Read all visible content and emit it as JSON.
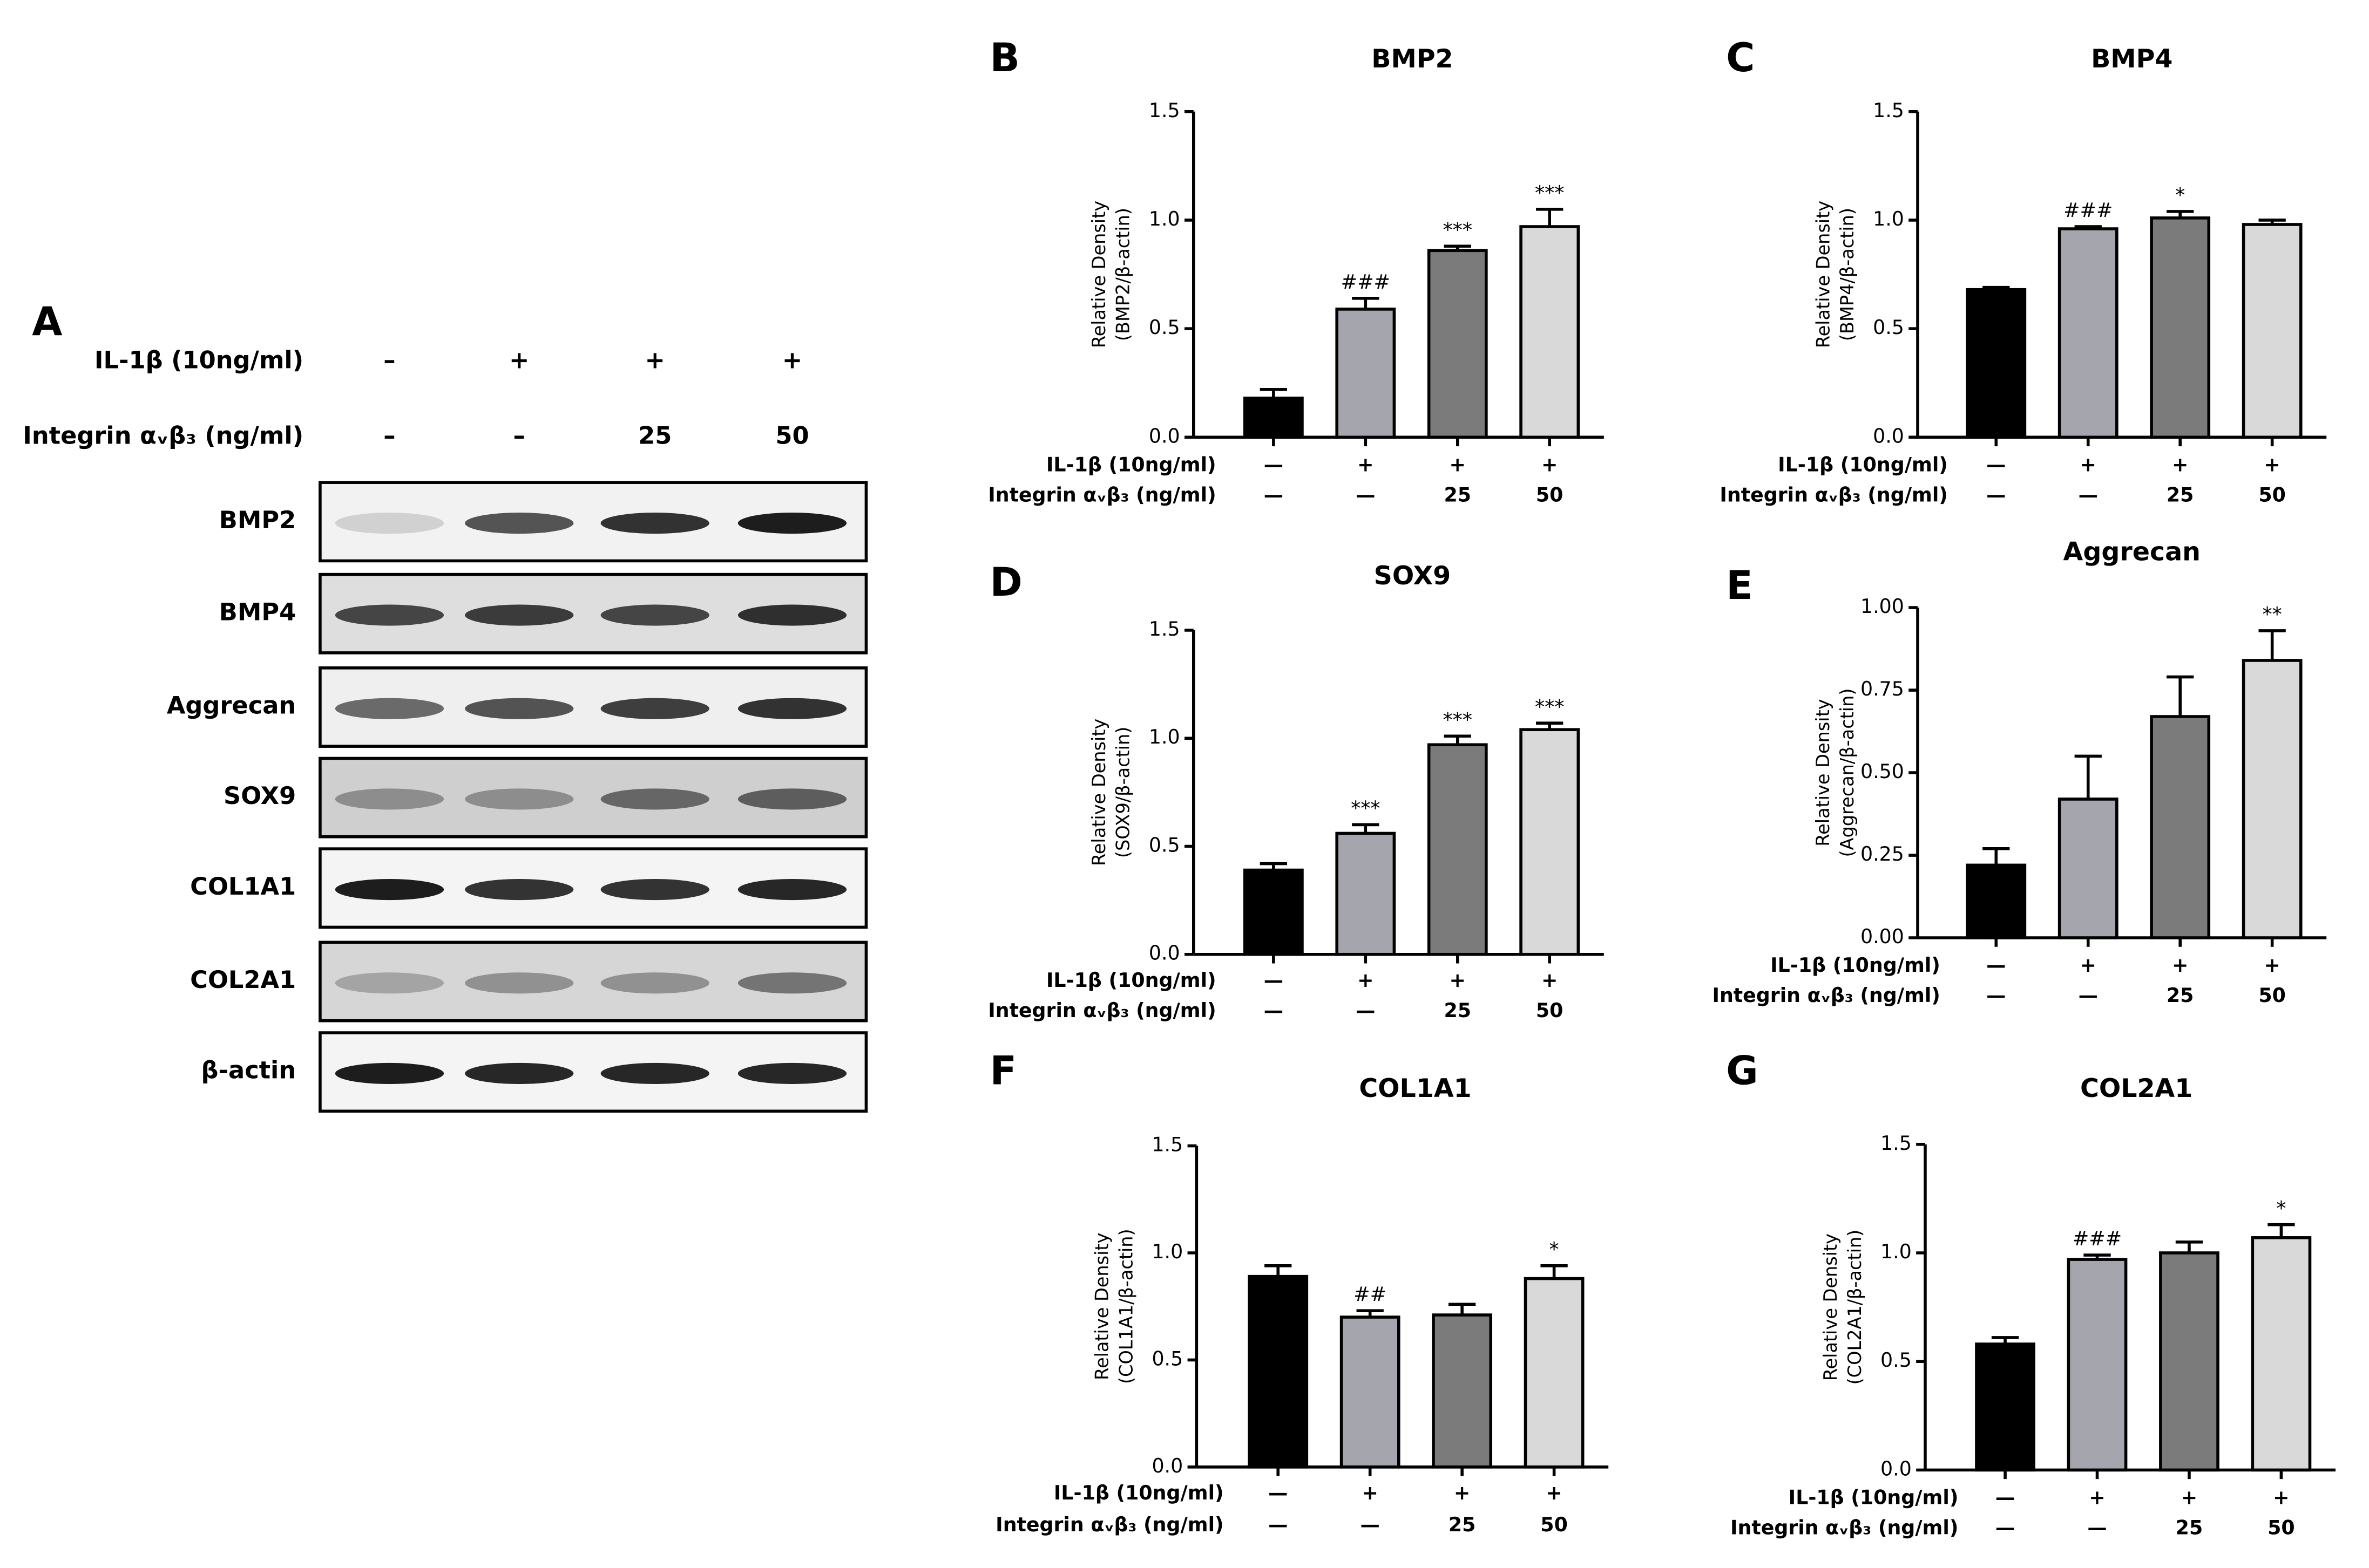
{
  "blot": {
    "panel": "A",
    "rows": [
      {
        "label": "IL-1β (10ng/ml)",
        "values": [
          "–",
          "+",
          "+",
          "+"
        ]
      },
      {
        "label": "Integrin αᵥβ₃ (ng/ml)",
        "values": [
          "–",
          "–",
          "25",
          "50"
        ]
      }
    ],
    "bands": [
      "BMP2",
      "BMP4",
      "Aggrecan",
      "SOX9",
      "COL1A1",
      "COL2A1",
      "β-actin"
    ]
  },
  "chart_data": [
    {
      "type": "bar",
      "panel": "B",
      "title": "BMP2",
      "y_label": [
        "Relative Density",
        "(BMP2/β-actin)"
      ],
      "rows": [
        {
          "label": "IL-1β (10ng/ml)",
          "values": [
            "—",
            "+",
            "+",
            "+"
          ]
        },
        {
          "label": "Integrin αᵥβ₃ (ng/ml)",
          "values": [
            "—",
            "—",
            "25",
            "50"
          ]
        }
      ],
      "values": [
        0.18,
        0.59,
        0.86,
        0.97
      ],
      "errors": [
        0.04,
        0.05,
        0.02,
        0.08
      ],
      "annotations": [
        null,
        "###",
        "***",
        "***"
      ],
      "colors": [
        "#000000",
        "#a5a5ad",
        "#7b7b7b",
        "#d9d9d9"
      ],
      "ylim": [
        0,
        1.5
      ],
      "yticks": [
        {
          "value": 0,
          "label": "0.0"
        },
        {
          "value": 0.5,
          "label": "0.5"
        },
        {
          "value": 1,
          "label": "1.0"
        },
        {
          "value": 1.5,
          "label": "1.5"
        }
      ]
    },
    {
      "type": "bar",
      "panel": "C",
      "title": "BMP4",
      "y_label": [
        "Relative Density",
        "(BMP4/β-actin)"
      ],
      "rows": [
        {
          "label": "IL-1β (10ng/ml)",
          "values": [
            "—",
            "+",
            "+",
            "+"
          ]
        },
        {
          "label": "Integrin αᵥβ₃ (ng/ml)",
          "values": [
            "—",
            "—",
            "25",
            "50"
          ]
        }
      ],
      "values": [
        0.68,
        0.96,
        1.01,
        0.98
      ],
      "errors": [
        0.01,
        0.01,
        0.03,
        0.02
      ],
      "annotations": [
        null,
        "###",
        "*",
        null
      ],
      "colors": [
        "#000000",
        "#a5a5ad",
        "#7b7b7b",
        "#d9d9d9"
      ],
      "ylim": [
        0,
        1.5
      ],
      "yticks": [
        {
          "value": 0,
          "label": "0.0"
        },
        {
          "value": 0.5,
          "label": "0.5"
        },
        {
          "value": 1,
          "label": "1.0"
        },
        {
          "value": 1.5,
          "label": "1.5"
        }
      ]
    },
    {
      "type": "bar",
      "panel": "D",
      "title": "SOX9",
      "y_label": [
        "Relative Density",
        "(SOX9/β-actin)"
      ],
      "rows": [
        {
          "label": "IL-1β (10ng/ml)",
          "values": [
            "—",
            "+",
            "+",
            "+"
          ]
        },
        {
          "label": "Integrin αᵥβ₃ (ng/ml)",
          "values": [
            "—",
            "—",
            "25",
            "50"
          ]
        }
      ],
      "values": [
        0.39,
        0.56,
        0.97,
        1.04
      ],
      "errors": [
        0.03,
        0.04,
        0.04,
        0.03
      ],
      "annotations": [
        null,
        "***",
        "***",
        "***"
      ],
      "colors": [
        "#000000",
        "#a5a5ad",
        "#7b7b7b",
        "#d9d9d9"
      ],
      "ylim": [
        0,
        1.5
      ],
      "yticks": [
        {
          "value": 0,
          "label": "0.0"
        },
        {
          "value": 0.5,
          "label": "0.5"
        },
        {
          "value": 1,
          "label": "1.0"
        },
        {
          "value": 1.5,
          "label": "1.5"
        }
      ]
    },
    {
      "type": "bar",
      "panel": "E",
      "title": "Aggrecan",
      "y_label": [
        "Relative Density",
        "(Aggrecan/β-actin)"
      ],
      "rows": [
        {
          "label": "IL-1β (10ng/ml)",
          "values": [
            "—",
            "+",
            "+",
            "+"
          ]
        },
        {
          "label": "Integrin αᵥβ₃ (ng/ml)",
          "values": [
            "—",
            "—",
            "25",
            "50"
          ]
        }
      ],
      "values": [
        0.22,
        0.42,
        0.67,
        0.84
      ],
      "errors": [
        0.05,
        0.13,
        0.12,
        0.09
      ],
      "annotations": [
        null,
        null,
        null,
        "**"
      ],
      "colors": [
        "#000000",
        "#a5a5ad",
        "#7b7b7b",
        "#d9d9d9"
      ],
      "ylim": [
        0,
        1
      ],
      "yticks": [
        {
          "value": 0,
          "label": "0.00"
        },
        {
          "value": 0.25,
          "label": "0.25"
        },
        {
          "value": 0.5,
          "label": "0.50"
        },
        {
          "value": 0.75,
          "label": "0.75"
        },
        {
          "value": 1,
          "label": "1.00"
        }
      ]
    },
    {
      "type": "bar",
      "panel": "F",
      "title": "COL1A1",
      "y_label": [
        "Relative Density",
        "(COL1A1/β-actin)"
      ],
      "rows": [
        {
          "label": "IL-1β (10ng/ml)",
          "values": [
            "—",
            "+",
            "+",
            "+"
          ]
        },
        {
          "label": "Integrin αᵥβ₃ (ng/ml)",
          "values": [
            "—",
            "—",
            "25",
            "50"
          ]
        }
      ],
      "values": [
        0.89,
        0.7,
        0.71,
        0.88
      ],
      "errors": [
        0.05,
        0.03,
        0.05,
        0.06
      ],
      "annotations": [
        null,
        "##",
        null,
        "*"
      ],
      "colors": [
        "#000000",
        "#a5a5ad",
        "#7b7b7b",
        "#d9d9d9"
      ],
      "ylim": [
        0,
        1.5
      ],
      "yticks": [
        {
          "value": 0,
          "label": "0.0"
        },
        {
          "value": 0.5,
          "label": "0.5"
        },
        {
          "value": 1,
          "label": "1.0"
        },
        {
          "value": 1.5,
          "label": "1.5"
        }
      ]
    },
    {
      "type": "bar",
      "panel": "G",
      "title": "COL2A1",
      "y_label": [
        "Relative Density",
        "(COL2A1/β-actin)"
      ],
      "rows": [
        {
          "label": "IL-1β (10ng/ml)",
          "values": [
            "—",
            "+",
            "+",
            "+"
          ]
        },
        {
          "label": "Integrin αᵥβ₃ (ng/ml)",
          "values": [
            "—",
            "—",
            "25",
            "50"
          ]
        }
      ],
      "values": [
        0.58,
        0.97,
        1.0,
        1.07
      ],
      "errors": [
        0.03,
        0.02,
        0.05,
        0.06
      ],
      "annotations": [
        null,
        "###",
        null,
        "*"
      ],
      "colors": [
        "#000000",
        "#a5a5ad",
        "#7b7b7b",
        "#d9d9d9"
      ],
      "ylim": [
        0,
        1.5
      ],
      "yticks": [
        {
          "value": 0,
          "label": "0.0"
        },
        {
          "value": 0.5,
          "label": "0.5"
        },
        {
          "value": 1,
          "label": "1.0"
        },
        {
          "value": 1.5,
          "label": "1.5"
        }
      ]
    }
  ]
}
